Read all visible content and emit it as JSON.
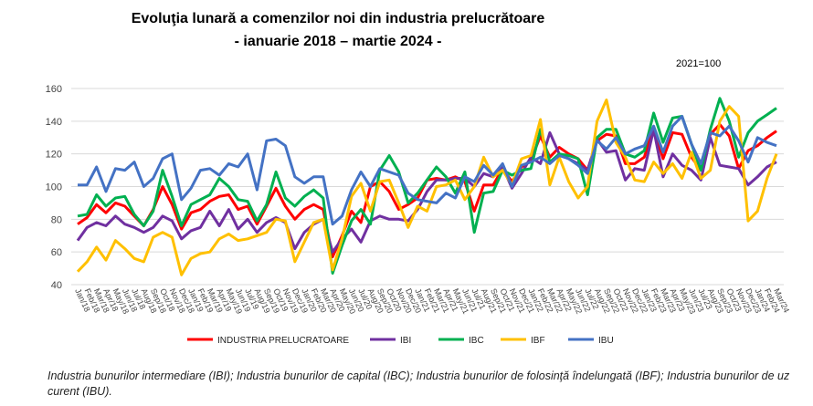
{
  "chart_data": {
    "type": "line",
    "title": "Evoluţia lunară a comenzilor noi din industria prelucrătoare",
    "subtitle": "-  ianuarie 2018 – martie 2024  -",
    "base_note": "2021=100",
    "ylim": [
      40,
      160
    ],
    "yticks": [
      40,
      60,
      80,
      100,
      120,
      140,
      160
    ],
    "grid": true,
    "legend_position": "bottom",
    "categories": [
      "Jan/18",
      "Feb/18",
      "Mar/18",
      "Apr/18",
      "May/18",
      "Jun/18",
      "Jul/18",
      "Aug/18",
      "Sep/18",
      "Oct/18",
      "Nov/18",
      "Dec/18",
      "Jan/19",
      "Feb/19",
      "Mar/19",
      "Apr/19",
      "May/19",
      "Jun/19",
      "Jul/19",
      "Aug/19",
      "Sep/19",
      "Oct/19",
      "Nov/19",
      "Dec/19",
      "Jan/20",
      "Feb/20",
      "Mar/20",
      "Apr/20",
      "May/20",
      "Jun/20",
      "Jul/20",
      "Aug/20",
      "Sep/20",
      "Oct/20",
      "Nov/20",
      "Dec/20",
      "Jan/21",
      "Feb/21",
      "Mar/21",
      "Apr/21",
      "May/21",
      "Jun/21",
      "Jul/21",
      "Aug/21",
      "Sep/21",
      "Oct/21",
      "Nov/21",
      "Dec/21",
      "Jan/22",
      "Feb/22",
      "Mar/22",
      "Apr/22",
      "May/22",
      "Jun/22",
      "Jul/22",
      "Aug/22",
      "Sep/22",
      "Oct/22",
      "Nov/22",
      "Dec/22",
      "Jan/23",
      "Feb/23",
      "Mar/23",
      "Apr/23",
      "May/23",
      "Jun/23",
      "Jul/23",
      "Aug/23",
      "Sep/23",
      "Oct/23",
      "Nov/23",
      "Dec/23",
      "Jan/24",
      "Feb/24",
      "Mar/24"
    ],
    "series": [
      {
        "name": "INDUSTRIA PRELUCRATOARE",
        "color": "#ff0000",
        "values": [
          77,
          81,
          89,
          84,
          90,
          88,
          82,
          76,
          86,
          100,
          89,
          74,
          84,
          86,
          91,
          94,
          95,
          86,
          88,
          77,
          88,
          99,
          88,
          80,
          86,
          89,
          86,
          57,
          70,
          85,
          78,
          100,
          103,
          97,
          86,
          89,
          93,
          104,
          105,
          104,
          106,
          103,
          85,
          101,
          101,
          111,
          103,
          112,
          116,
          131,
          118,
          124,
          120,
          117,
          110,
          128,
          132,
          131,
          114,
          114,
          118,
          136,
          117,
          133,
          132,
          118,
          110,
          132,
          138,
          131,
          111,
          122,
          125,
          130,
          134
        ]
      },
      {
        "name": "IBI",
        "color": "#7030a0",
        "values": [
          67,
          75,
          78,
          76,
          82,
          77,
          75,
          72,
          75,
          82,
          79,
          68,
          73,
          75,
          85,
          76,
          86,
          74,
          80,
          72,
          78,
          81,
          78,
          62,
          72,
          77,
          80,
          60,
          68,
          74,
          66,
          79,
          82,
          80,
          80,
          79,
          86,
          97,
          104,
          104,
          105,
          105,
          100,
          108,
          106,
          112,
          99,
          108,
          118,
          114,
          133,
          120,
          117,
          114,
          110,
          129,
          121,
          122,
          104,
          111,
          110,
          135,
          106,
          120,
          113,
          110,
          104,
          130,
          113,
          112,
          111,
          101,
          106,
          112,
          115
        ]
      },
      {
        "name": "IBC",
        "color": "#00b050",
        "values": [
          82,
          83,
          95,
          88,
          93,
          94,
          83,
          76,
          85,
          110,
          94,
          76,
          89,
          92,
          95,
          105,
          100,
          92,
          91,
          79,
          89,
          109,
          93,
          88,
          94,
          98,
          93,
          47,
          64,
          79,
          86,
          77,
          110,
          119,
          109,
          90,
          96,
          104,
          112,
          106,
          96,
          109,
          72,
          96,
          97,
          110,
          107,
          110,
          111,
          135,
          115,
          120,
          119,
          117,
          95,
          130,
          135,
          135,
          120,
          118,
          122,
          145,
          127,
          142,
          143,
          126,
          110,
          135,
          154,
          140,
          118,
          133,
          140,
          144,
          148
        ]
      },
      {
        "name": "IBF",
        "color": "#ffc000",
        "values": [
          48,
          54,
          63,
          55,
          67,
          62,
          56,
          54,
          69,
          72,
          69,
          46,
          56,
          59,
          60,
          68,
          71,
          67,
          68,
          70,
          72,
          80,
          79,
          54,
          66,
          78,
          80,
          49,
          68,
          94,
          102,
          85,
          103,
          104,
          90,
          75,
          88,
          85,
          100,
          101,
          104,
          92,
          100,
          118,
          106,
          110,
          101,
          117,
          119,
          141,
          101,
          118,
          103,
          93,
          100,
          140,
          153,
          127,
          118,
          104,
          103,
          115,
          108,
          114,
          105,
          121,
          105,
          110,
          140,
          149,
          143,
          79,
          85,
          105,
          120
        ]
      },
      {
        "name": "IBU",
        "color": "#4472c4",
        "values": [
          101,
          101,
          112,
          97,
          111,
          110,
          115,
          100,
          105,
          117,
          120,
          92,
          99,
          110,
          111,
          107,
          114,
          112,
          120,
          98,
          128,
          129,
          125,
          106,
          102,
          106,
          106,
          77,
          82,
          98,
          109,
          100,
          111,
          109,
          107,
          96,
          92,
          91,
          90,
          96,
          93,
          106,
          103,
          113,
          107,
          114,
          100,
          113,
          115,
          118,
          114,
          119,
          117,
          113,
          108,
          128,
          123,
          130,
          120,
          123,
          125,
          137,
          121,
          137,
          143,
          126,
          114,
          133,
          131,
          137,
          128,
          115,
          130,
          127,
          125
        ]
      }
    ]
  },
  "footnote": "Industria bunurilor intermediare (IBI); Industria bunurilor de capital (IBC); Industria bunurilor de folosinţă îndelungată (IBF); Industria bunurilor de uz curent (IBU)."
}
